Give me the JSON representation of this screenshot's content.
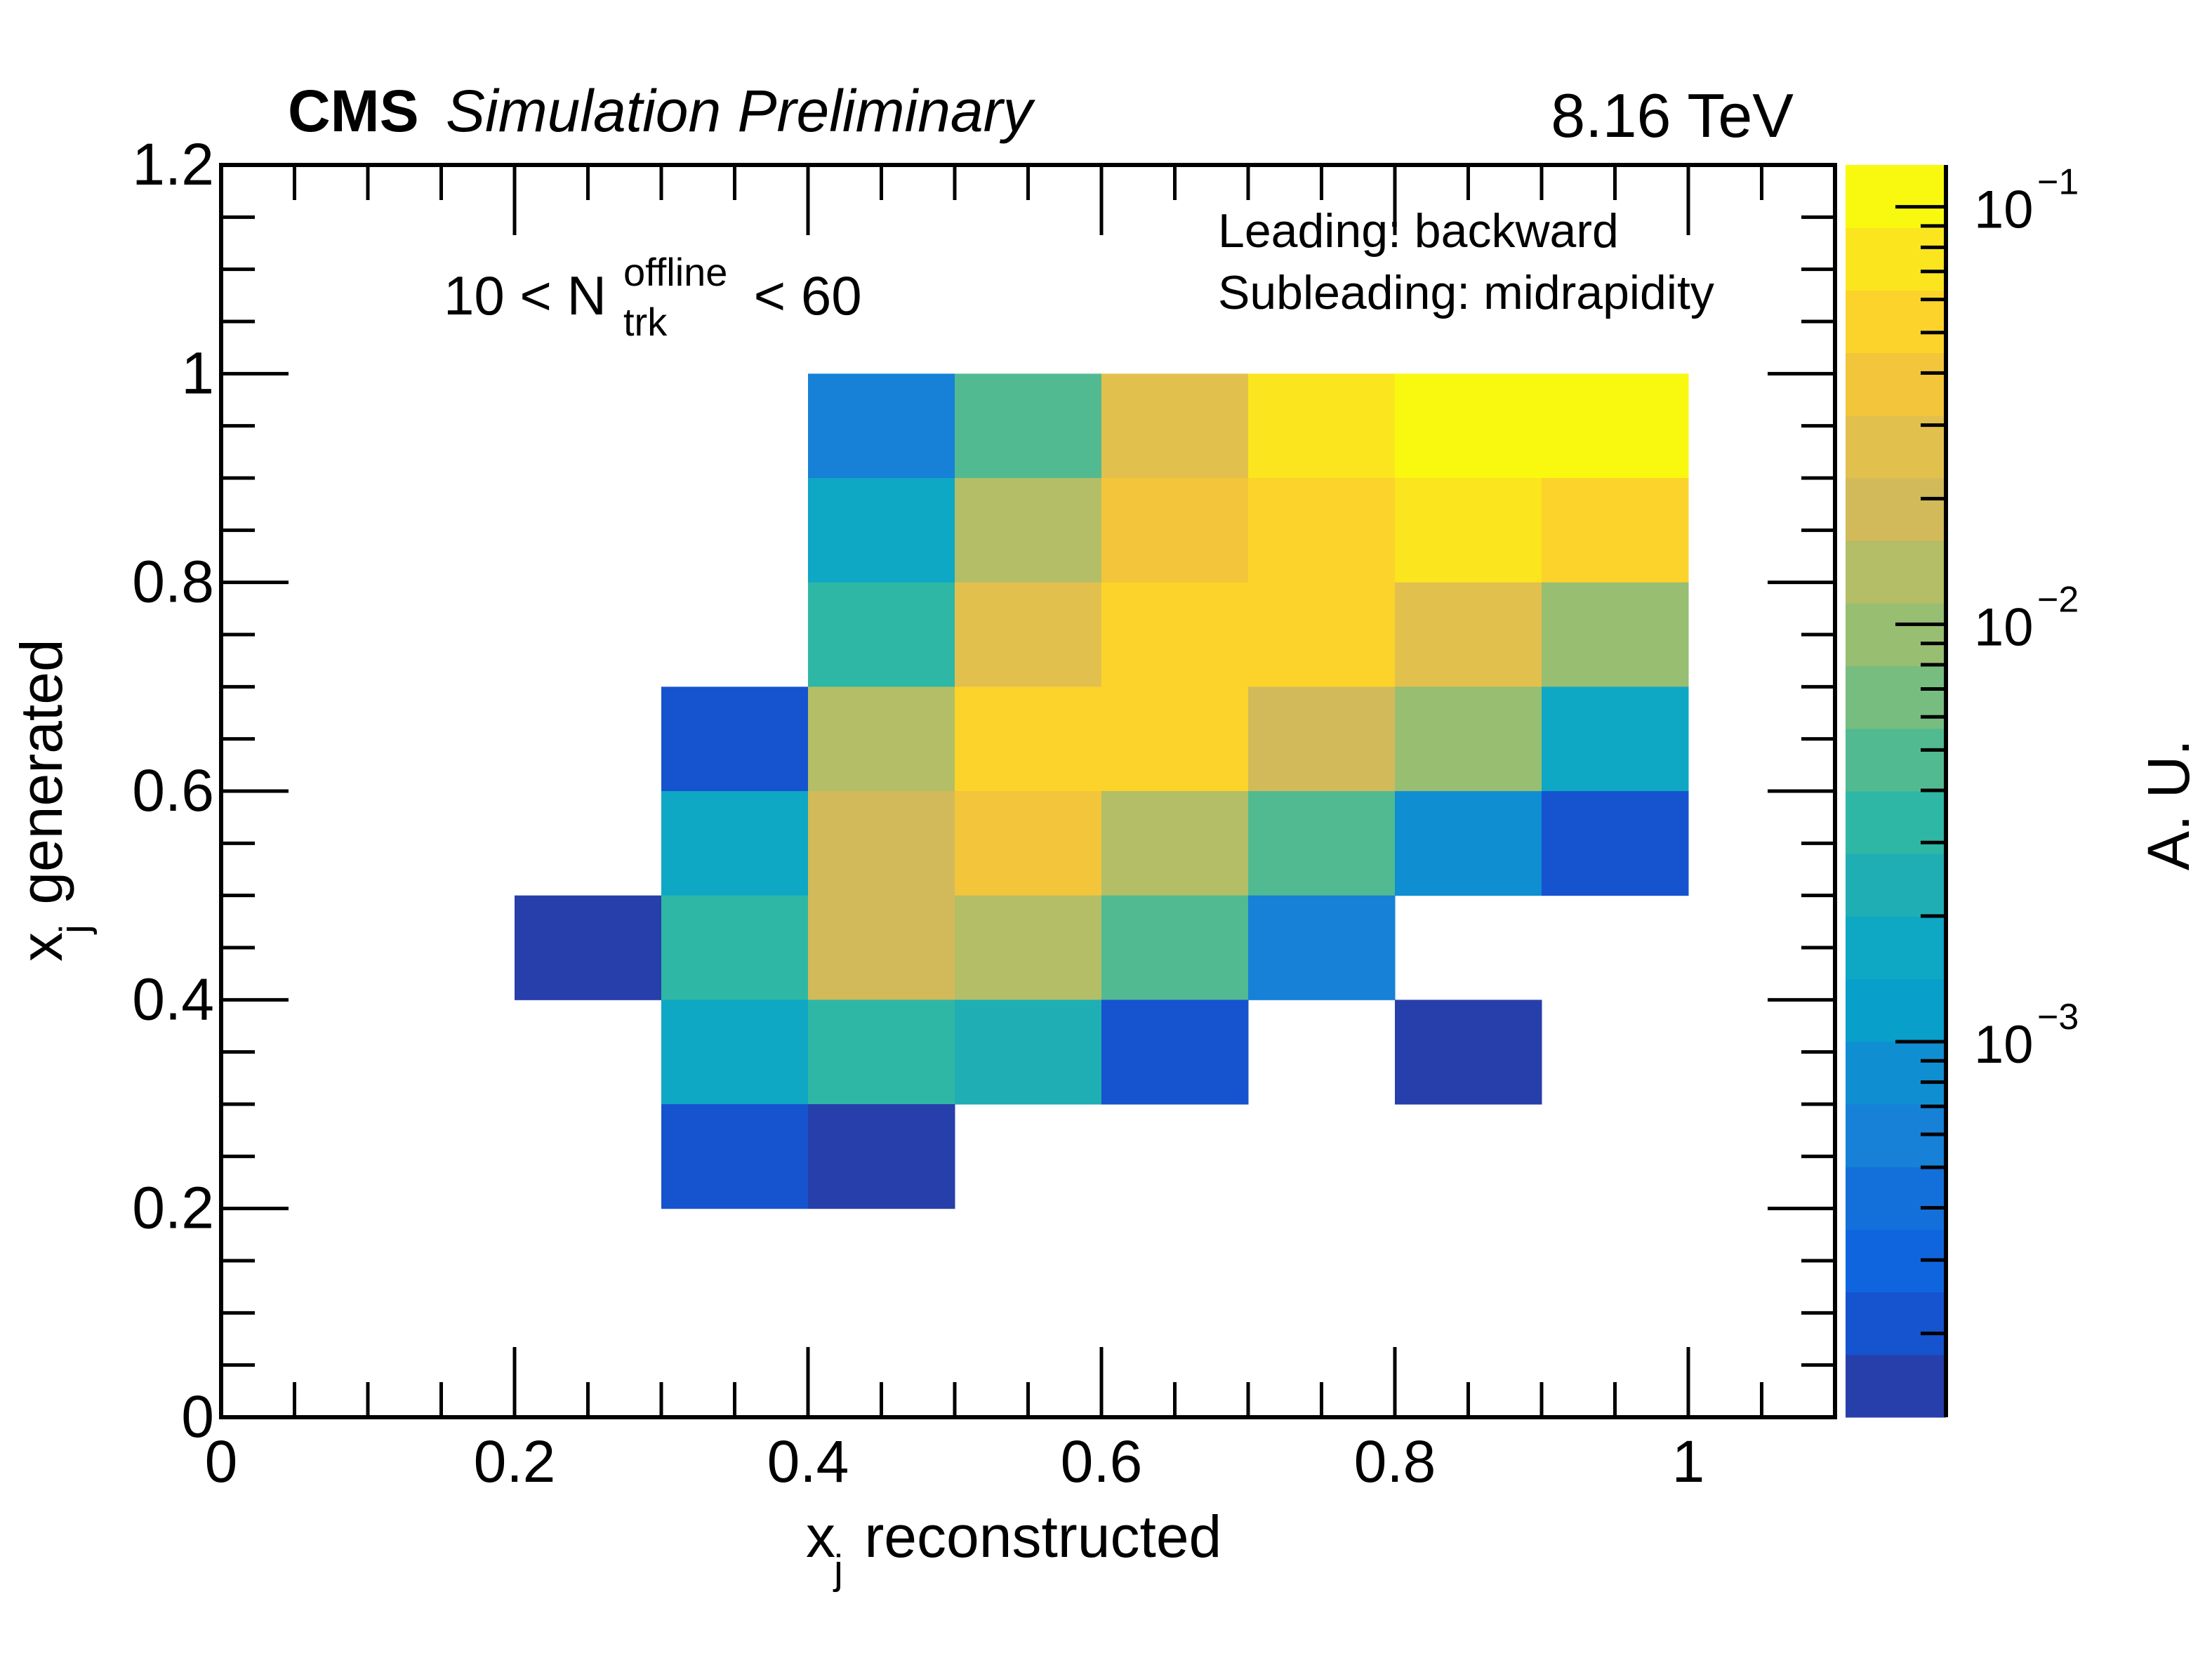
{
  "header": {
    "experiment": "CMS",
    "status": "Simulation Preliminary",
    "energy": "8.16 TeV"
  },
  "annotations": {
    "multiplicity_prefix": "10 < N",
    "multiplicity_sup": "offline",
    "multiplicity_sub": "trk",
    "multiplicity_suffix": " < 60",
    "leading": "Leading: backward",
    "subleading": "Subleading: midrapidity"
  },
  "chart_data": {
    "type": "heatmap",
    "title": "",
    "xlabel_main": "x",
    "xlabel_sub": "j",
    "xlabel_rest": " reconstructed",
    "ylabel_main": "x",
    "ylabel_sub": "j",
    "ylabel_rest": " generated",
    "zlabel": "A. U.",
    "xlim": [
      0,
      1.1
    ],
    "ylim": [
      0,
      1.2
    ],
    "x_ticks": [
      0,
      0.2,
      0.4,
      0.6,
      0.8,
      1
    ],
    "x_tick_labels": [
      "0",
      "0.2",
      "0.4",
      "0.6",
      "0.8",
      "1"
    ],
    "y_ticks": [
      0,
      0.2,
      0.4,
      0.6,
      0.8,
      1,
      1.2
    ],
    "y_tick_labels": [
      "0",
      "0.2",
      "0.4",
      "0.6",
      "0.8",
      "1",
      "1.2"
    ],
    "z_scale": "log",
    "zlim": [
      0.000126,
      0.126
    ],
    "z_ticks": [
      0.1,
      0.01,
      0.001
    ],
    "z_tick_mantissa": [
      "10",
      "10",
      "10"
    ],
    "z_tick_exponent": [
      "−1",
      "−2",
      "−3"
    ],
    "colorbar_levels": 20,
    "palette": [
      "#273faa",
      "#1653cf",
      "#0f65de",
      "#1370db",
      "#1681d6",
      "#0f8fd1",
      "#099fcb",
      "#0ea7c4",
      "#1faeb3",
      "#2eb7a5",
      "#52ba91",
      "#77bd7f",
      "#98be72",
      "#b3be67",
      "#d2ba5a",
      "#e2c04d",
      "#f3c53a",
      "#fcd32a",
      "#fbe51f",
      "#f9f90f"
    ],
    "bin_width_x": 0.1,
    "bin_width_y": 0.1,
    "cells": [
      {
        "x": 0.4,
        "y": 0.9,
        "z": 0.0006
      },
      {
        "x": 0.5,
        "y": 0.9,
        "z": 0.0047
      },
      {
        "x": 0.6,
        "y": 0.9,
        "z": 0.027
      },
      {
        "x": 0.7,
        "y": 0.9,
        "z": 0.075
      },
      {
        "x": 0.8,
        "y": 0.9,
        "z": 0.106
      },
      {
        "x": 0.9,
        "y": 0.9,
        "z": 0.106
      },
      {
        "x": 0.4,
        "y": 0.8,
        "z": 0.0017
      },
      {
        "x": 0.5,
        "y": 0.8,
        "z": 0.013
      },
      {
        "x": 0.6,
        "y": 0.8,
        "z": 0.038
      },
      {
        "x": 0.7,
        "y": 0.8,
        "z": 0.053
      },
      {
        "x": 0.8,
        "y": 0.8,
        "z": 0.075
      },
      {
        "x": 0.9,
        "y": 0.8,
        "z": 0.053
      },
      {
        "x": 0.4,
        "y": 0.7,
        "z": 0.0033
      },
      {
        "x": 0.5,
        "y": 0.7,
        "z": 0.027
      },
      {
        "x": 0.6,
        "y": 0.7,
        "z": 0.053
      },
      {
        "x": 0.7,
        "y": 0.7,
        "z": 0.053
      },
      {
        "x": 0.8,
        "y": 0.7,
        "z": 0.027
      },
      {
        "x": 0.9,
        "y": 0.7,
        "z": 0.0094
      },
      {
        "x": 0.3,
        "y": 0.6,
        "z": 0.00021
      },
      {
        "x": 0.4,
        "y": 0.6,
        "z": 0.013
      },
      {
        "x": 0.5,
        "y": 0.6,
        "z": 0.053
      },
      {
        "x": 0.6,
        "y": 0.6,
        "z": 0.053
      },
      {
        "x": 0.7,
        "y": 0.6,
        "z": 0.019
      },
      {
        "x": 0.8,
        "y": 0.6,
        "z": 0.0094
      },
      {
        "x": 0.9,
        "y": 0.6,
        "z": 0.0017
      },
      {
        "x": 0.3,
        "y": 0.5,
        "z": 0.0017
      },
      {
        "x": 0.4,
        "y": 0.5,
        "z": 0.019
      },
      {
        "x": 0.5,
        "y": 0.5,
        "z": 0.038
      },
      {
        "x": 0.6,
        "y": 0.5,
        "z": 0.013
      },
      {
        "x": 0.7,
        "y": 0.5,
        "z": 0.0047
      },
      {
        "x": 0.8,
        "y": 0.5,
        "z": 0.00084
      },
      {
        "x": 0.9,
        "y": 0.5,
        "z": 0.00021
      },
      {
        "x": 0.2,
        "y": 0.4,
        "z": 0.00015
      },
      {
        "x": 0.3,
        "y": 0.4,
        "z": 0.0033
      },
      {
        "x": 0.4,
        "y": 0.4,
        "z": 0.019
      },
      {
        "x": 0.5,
        "y": 0.4,
        "z": 0.013
      },
      {
        "x": 0.6,
        "y": 0.4,
        "z": 0.0047
      },
      {
        "x": 0.7,
        "y": 0.4,
        "z": 0.0006
      },
      {
        "x": 0.3,
        "y": 0.3,
        "z": 0.0017
      },
      {
        "x": 0.4,
        "y": 0.3,
        "z": 0.0033
      },
      {
        "x": 0.5,
        "y": 0.3,
        "z": 0.0024
      },
      {
        "x": 0.6,
        "y": 0.3,
        "z": 0.00021
      },
      {
        "x": 0.8,
        "y": 0.3,
        "z": 0.00015
      },
      {
        "x": 0.3,
        "y": 0.2,
        "z": 0.00021
      },
      {
        "x": 0.4,
        "y": 0.2,
        "z": 0.00015
      }
    ]
  }
}
